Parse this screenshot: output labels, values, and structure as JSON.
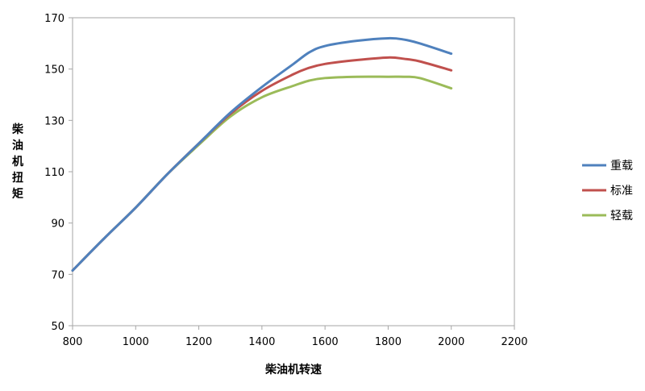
{
  "chart_data": {
    "type": "line",
    "title": "",
    "xlabel": "柴油机转速",
    "ylabel": "柴油机扭矩",
    "xlim": [
      800,
      2200
    ],
    "ylim": [
      50,
      170
    ],
    "x_ticks": [
      800,
      1000,
      1200,
      1400,
      1600,
      1800,
      2000,
      2200
    ],
    "y_ticks": [
      50,
      70,
      90,
      110,
      130,
      150,
      170
    ],
    "grid": false,
    "legend_position": "right",
    "series": [
      {
        "name": "重载",
        "color": "#4f81bd",
        "x": [
          800,
          900,
          1000,
          1100,
          1200,
          1300,
          1400,
          1500,
          1550,
          1600,
          1700,
          1800,
          1850,
          1900,
          2000
        ],
        "y": [
          71.5,
          84,
          96,
          109,
          121,
          133,
          143,
          152,
          156.5,
          159,
          161,
          162,
          161.5,
          160,
          156
        ]
      },
      {
        "name": "标准",
        "color": "#c0504d",
        "x": [
          800,
          900,
          1000,
          1100,
          1200,
          1300,
          1400,
          1500,
          1550,
          1600,
          1700,
          1800,
          1850,
          1900,
          2000
        ],
        "y": [
          71.5,
          84,
          96,
          109,
          121,
          132.5,
          141.5,
          148,
          150.5,
          152,
          153.5,
          154.5,
          154,
          153,
          149.5
        ]
      },
      {
        "name": "轻载",
        "color": "#9bbb59",
        "x": [
          800,
          900,
          1000,
          1100,
          1200,
          1300,
          1400,
          1500,
          1550,
          1600,
          1700,
          1800,
          1850,
          1900,
          2000
        ],
        "y": [
          71.5,
          84,
          96,
          109,
          120.5,
          131.5,
          139,
          143.5,
          145.5,
          146.5,
          147,
          147,
          147,
          146.5,
          142.5
        ]
      }
    ]
  }
}
